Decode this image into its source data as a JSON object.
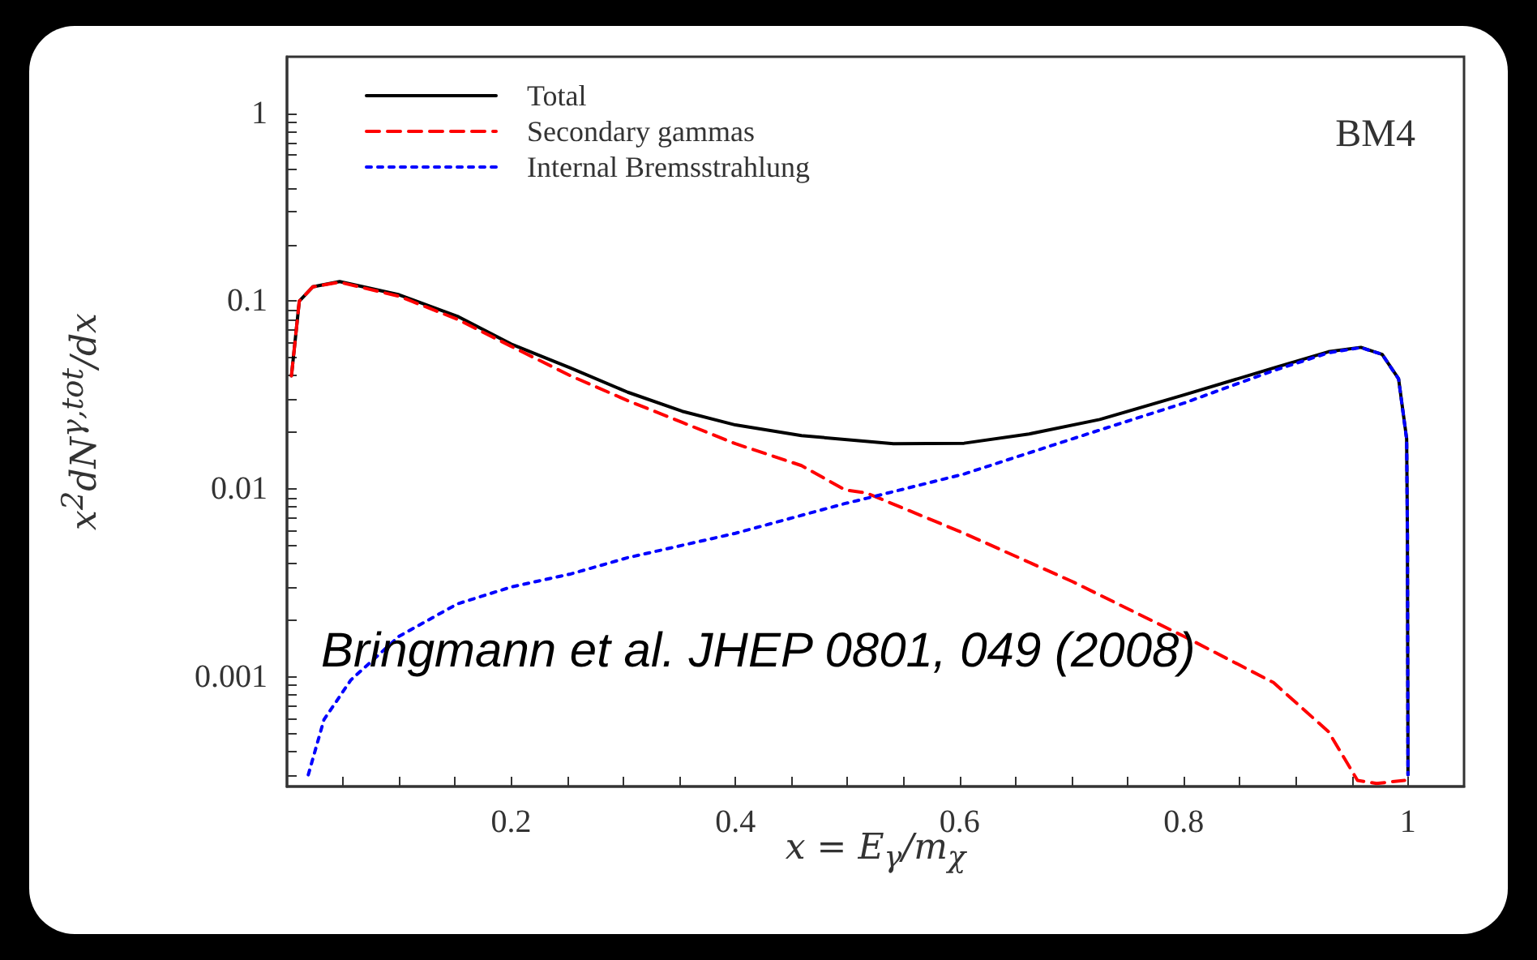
{
  "chart_data": {
    "type": "line",
    "xlabel": "x = E$_{γ}$/m$_{χ}$",
    "ylabel": "x$^{2}$dN$^{γ,tot}$/dx",
    "annotations": [
      "BM4",
      "Bringmann et al. JHEP 0801, 049 (2008)"
    ],
    "log": "y",
    "grid": false,
    "legend": "top left",
    "marker": "none",
    "xlim": [
      0,
      1.05
    ],
    "ylim": [
      0.00026,
      2
    ],
    "xticks": [
      {
        "value": 0.05,
        "label": null
      },
      {
        "value": 0.1,
        "label": null
      },
      {
        "value": 0.15,
        "label": null
      },
      0.2,
      {
        "value": 0.25,
        "label": null
      },
      {
        "value": 0.3,
        "label": null
      },
      {
        "value": 0.35,
        "label": null
      },
      0.4,
      {
        "value": 0.45,
        "label": null
      },
      {
        "value": 0.5,
        "label": null
      },
      {
        "value": 0.55,
        "label": null
      },
      0.6,
      {
        "value": 0.65,
        "label": null
      },
      {
        "value": 0.7,
        "label": null
      },
      {
        "value": 0.75,
        "label": null
      },
      0.8,
      {
        "value": 0.85,
        "label": null
      },
      {
        "value": 0.9,
        "label": null
      },
      {
        "value": 0.95,
        "label": null
      },
      1
    ],
    "yticks": [
      {
        "value": 0.0003,
        "label": null
      },
      {
        "value": 0.0004,
        "label": null
      },
      {
        "value": 0.0005,
        "label": null
      },
      {
        "value": 0.0006,
        "label": null
      },
      {
        "value": 0.0007,
        "label": null
      },
      {
        "value": 0.0008,
        "label": null
      },
      {
        "value": 0.0009,
        "label": null
      },
      0.001,
      {
        "value": 0.002,
        "label": null
      },
      {
        "value": 0.003,
        "label": null
      },
      {
        "value": 0.004,
        "label": null
      },
      {
        "value": 0.005,
        "label": null
      },
      {
        "value": 0.006,
        "label": null
      },
      {
        "value": 0.007,
        "label": null
      },
      {
        "value": 0.008,
        "label": null
      },
      {
        "value": 0.009,
        "label": null
      },
      0.01,
      {
        "value": 0.02,
        "label": null
      },
      {
        "value": 0.03,
        "label": null
      },
      {
        "value": 0.04,
        "label": null
      },
      {
        "value": 0.05,
        "label": null
      },
      {
        "value": 0.06,
        "label": null
      },
      {
        "value": 0.07,
        "label": null
      },
      {
        "value": 0.08,
        "label": null
      },
      {
        "value": 0.09,
        "label": null
      },
      0.1,
      {
        "value": 0.2,
        "label": null
      },
      {
        "value": 0.3,
        "label": null
      },
      {
        "value": 0.4,
        "label": null
      },
      {
        "value": 0.5,
        "label": null
      },
      {
        "value": 0.6,
        "label": null
      },
      {
        "value": 0.7,
        "label": null
      },
      {
        "value": 0.8,
        "label": null
      },
      {
        "value": 0.9,
        "label": null
      },
      1
    ],
    "series": [
      {
        "name": "Total",
        "color": "#000000",
        "line_style": "solid",
        "x": [
          0.004,
          0.011,
          0.023,
          0.047,
          0.1,
          0.152,
          0.2,
          0.253,
          0.304,
          0.3525,
          0.4,
          0.459,
          0.541,
          0.604,
          0.662,
          0.725,
          0.8,
          0.88,
          0.929,
          0.958,
          0.977,
          0.9916,
          0.9988,
          0.9995,
          1.0
        ],
        "values": [
          0.04,
          0.1,
          0.119,
          0.127,
          0.108,
          0.083,
          0.059,
          0.044,
          0.0327,
          0.0259,
          0.0219,
          0.0192,
          0.0174,
          0.0175,
          0.0196,
          0.0234,
          0.0316,
          0.044,
          0.0537,
          0.0567,
          0.052,
          0.0386,
          0.0185,
          0.0056,
          0.0003
        ]
      },
      {
        "name": "Secondary gammas",
        "color": "#ff0000",
        "line_style": "dashed",
        "x": [
          0.004,
          0.011,
          0.023,
          0.047,
          0.1,
          0.152,
          0.2,
          0.253,
          0.304,
          0.3525,
          0.4,
          0.459,
          0.498,
          0.517,
          0.604,
          0.701,
          0.8,
          0.88,
          0.929,
          0.955,
          0.972,
          0.997
        ],
        "values": [
          0.04,
          0.1,
          0.119,
          0.126,
          0.106,
          0.08,
          0.0574,
          0.04,
          0.0295,
          0.0226,
          0.0174,
          0.0133,
          0.00986,
          0.0095,
          0.0058,
          0.0032,
          0.00164,
          0.00093,
          0.00051,
          0.00028,
          0.00027,
          0.00028
        ]
      },
      {
        "name": "Internal Bremsstrahlung",
        "color": "#0000ff",
        "line_style": "dotted",
        "x": [
          0.019,
          0.033,
          0.057,
          0.1,
          0.152,
          0.2,
          0.253,
          0.304,
          0.4,
          0.498,
          0.517,
          0.604,
          0.701,
          0.8,
          0.88,
          0.929,
          0.958,
          0.977,
          0.9916,
          0.9988,
          0.9995,
          1.0
        ],
        "values": [
          0.0003,
          0.00059,
          0.00096,
          0.00164,
          0.00244,
          0.003,
          0.00352,
          0.0043,
          0.0058,
          0.00836,
          0.0089,
          0.012,
          0.0185,
          0.0286,
          0.0426,
          0.053,
          0.0565,
          0.052,
          0.0385,
          0.0183,
          0.0055,
          0.0003
        ]
      }
    ]
  }
}
